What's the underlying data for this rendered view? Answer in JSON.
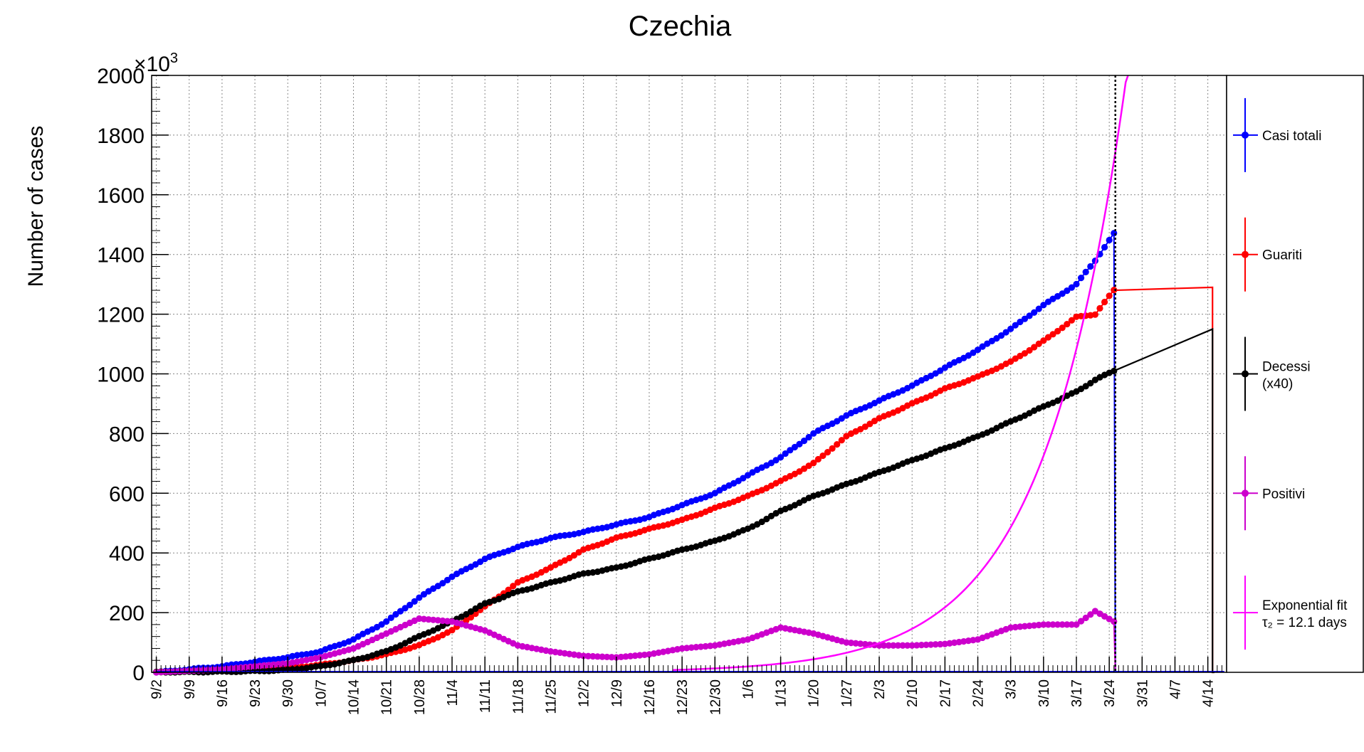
{
  "chart_data": {
    "type": "line",
    "title": "Czechia",
    "ylabel": "Number of cases",
    "xlabel": "",
    "y_exponent_label": "×10",
    "y_exponent_power": "3",
    "ylim": [
      0,
      2000
    ],
    "yticks": [
      0,
      200,
      400,
      600,
      800,
      1000,
      1200,
      1400,
      1600,
      1800,
      2000
    ],
    "grid": true,
    "legend_position": "right",
    "x_start_date": "2020-09-02",
    "xticks": [
      "9/2",
      "9/9",
      "9/16",
      "9/23",
      "9/30",
      "10/7",
      "10/14",
      "10/21",
      "10/28",
      "11/4",
      "11/11",
      "11/18",
      "11/25",
      "12/2",
      "12/9",
      "12/16",
      "12/23",
      "12/30",
      "1/6",
      "1/13",
      "1/20",
      "1/27",
      "2/3",
      "2/10",
      "2/17",
      "2/24",
      "3/3",
      "3/10",
      "3/17",
      "3/24",
      "3/31",
      "4/7",
      "4/14"
    ],
    "xlim_days": [
      -1,
      228
    ],
    "data_end_day": 204,
    "vertical_line_day": 204.3,
    "series": [
      {
        "name": "Casi totali",
        "color": "#0000ff",
        "key_x": [
          0,
          7,
          14,
          21,
          28,
          35,
          42,
          49,
          56,
          63,
          70,
          77,
          84,
          91,
          98,
          105,
          112,
          119,
          126,
          133,
          140,
          147,
          154,
          161,
          168,
          175,
          182,
          189,
          196,
          200,
          204
        ],
        "key_y": [
          0,
          10,
          20,
          35,
          50,
          70,
          110,
          170,
          250,
          320,
          380,
          420,
          450,
          470,
          495,
          520,
          560,
          600,
          660,
          720,
          800,
          860,
          910,
          960,
          1020,
          1080,
          1150,
          1230,
          1300,
          1380,
          1470
        ]
      },
      {
        "name": "Guariti",
        "color": "#ff0000",
        "key_x": [
          0,
          7,
          14,
          21,
          28,
          35,
          42,
          49,
          56,
          63,
          70,
          77,
          84,
          91,
          98,
          105,
          112,
          119,
          126,
          133,
          140,
          147,
          154,
          161,
          168,
          175,
          182,
          189,
          196,
          200,
          202,
          204
        ],
        "key_y": [
          0,
          3,
          5,
          10,
          15,
          25,
          40,
          60,
          90,
          140,
          220,
          300,
          350,
          410,
          450,
          480,
          510,
          550,
          590,
          640,
          700,
          790,
          850,
          900,
          950,
          990,
          1040,
          1110,
          1190,
          1200,
          1240,
          1280
        ],
        "tail_x": [
          204,
          225
        ],
        "tail_y": [
          1280,
          1290
        ]
      },
      {
        "name": "Decessi (x40)",
        "color": "#000000",
        "key_x": [
          0,
          7,
          14,
          21,
          28,
          35,
          42,
          49,
          56,
          63,
          70,
          77,
          84,
          91,
          98,
          105,
          112,
          119,
          126,
          133,
          140,
          147,
          154,
          161,
          168,
          175,
          182,
          189,
          196,
          200,
          204
        ],
        "key_y": [
          0,
          1,
          2,
          4,
          8,
          20,
          40,
          70,
          120,
          170,
          230,
          270,
          300,
          330,
          350,
          380,
          410,
          440,
          480,
          540,
          590,
          630,
          670,
          710,
          750,
          790,
          840,
          890,
          940,
          980,
          1010
        ],
        "tail_x": [
          204,
          225
        ],
        "tail_y": [
          1010,
          1150
        ]
      },
      {
        "name": "Positivi",
        "color": "#cc00cc",
        "key_x": [
          0,
          7,
          14,
          21,
          28,
          35,
          42,
          49,
          56,
          63,
          70,
          77,
          84,
          91,
          98,
          105,
          112,
          119,
          126,
          133,
          140,
          147,
          154,
          161,
          168,
          175,
          182,
          189,
          196,
          200,
          204
        ],
        "key_y": [
          0,
          5,
          10,
          20,
          30,
          50,
          80,
          130,
          180,
          170,
          140,
          90,
          70,
          55,
          50,
          60,
          80,
          90,
          110,
          150,
          130,
          100,
          90,
          90,
          95,
          110,
          150,
          160,
          160,
          205,
          170
        ]
      },
      {
        "name": "Exponential fit",
        "name_line2": "τ₂ = 12.1 days",
        "color": "#ff00ff",
        "fit_days": [
          110,
          228
        ],
        "fit_A": 1.58,
        "fit_ref_day": 82,
        "fit_tau2": 12.1
      }
    ]
  }
}
